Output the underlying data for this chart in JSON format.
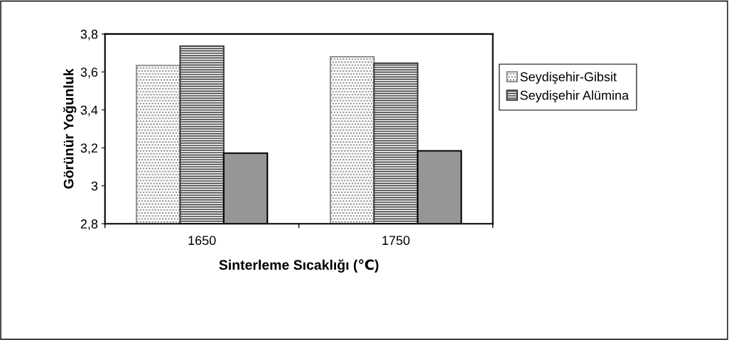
{
  "chart_data": {
    "type": "bar",
    "xlabel": "Sinterleme Sıcaklığı (℃)",
    "ylabel": "Görünür Yoğunluk",
    "categories": [
      "1650",
      "1750"
    ],
    "series": [
      {
        "name": "Seydişehir-Gibsit",
        "color": "#909090",
        "values": [
          3.634,
          3.68
        ]
      },
      {
        "name": "Seydişehir Alümina",
        "color": "#404040",
        "values": [
          3.736,
          3.646
        ]
      },
      {
        "color": "#969696",
        "values": [
          3.172,
          3.184
        ]
      }
    ],
    "ylim": [
      2.8,
      3.8
    ],
    "yticks": [
      {
        "value": 2.8,
        "label": "2,8"
      },
      {
        "value": 3,
        "label": "3"
      },
      {
        "value": 3.2,
        "label": "3,2"
      },
      {
        "value": 3.4,
        "label": "3,4"
      },
      {
        "value": 3.6,
        "label": "3,6"
      },
      {
        "value": 3.8,
        "label": "3,8"
      }
    ],
    "grid": false,
    "legend": "right"
  }
}
